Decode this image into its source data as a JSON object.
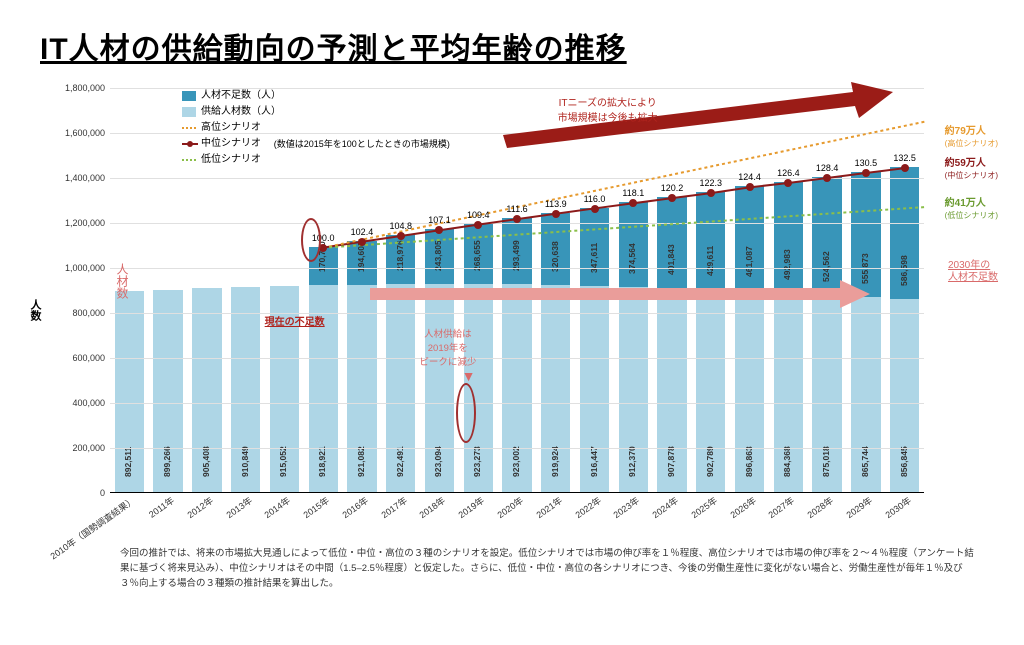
{
  "title": "IT人材の供給動向の予測と平均年齢の推移",
  "chart": {
    "type": "bar+line",
    "y_label": "人数",
    "ylim": [
      0,
      1800000
    ],
    "ytick_step": 200000,
    "background": "#ffffff",
    "grid_color": "#e0e0e0",
    "supply_color": "#aed6e6",
    "shortage_color": "#3895b9",
    "mid_color": "#8b1a1a",
    "high_color": "#e69a2e",
    "low_color": "#8bbf4a",
    "years": [
      "2010年（国勢調査結果）",
      "2011年",
      "2012年",
      "2013年",
      "2014年",
      "2015年",
      "2016年",
      "2017年",
      "2018年",
      "2019年",
      "2020年",
      "2021年",
      "2022年",
      "2023年",
      "2024年",
      "2025年",
      "2026年",
      "2027年",
      "2028年",
      "2029年",
      "2030年"
    ],
    "supply": [
      892511,
      899266,
      905408,
      910849,
      915052,
      918921,
      921082,
      922491,
      923094,
      923273,
      923002,
      919924,
      916447,
      912370,
      907878,
      902789,
      896863,
      884368,
      875018,
      865744,
      856845
    ],
    "shortage": [
      null,
      null,
      null,
      null,
      null,
      170700,
      194608,
      218976,
      243805,
      268655,
      293499,
      320638,
      347611,
      374564,
      401843,
      429611,
      461087,
      492983,
      524562,
      555873,
      586598
    ],
    "mid_values": [
      null,
      null,
      null,
      null,
      null,
      100.0,
      102.4,
      104.8,
      107.1,
      109.4,
      111.6,
      113.9,
      116.0,
      118.1,
      120.2,
      122.3,
      124.4,
      126.4,
      128.4,
      130.5,
      132.5
    ],
    "high_start": 1089000,
    "high_end": 1650000,
    "low_start": 1089000,
    "low_end": 1270000,
    "mid_note": "(数値は2015年を100としたときの市場規模)"
  },
  "legend": {
    "shortage": "人材不足数（人）",
    "supply": "供給人材数（人）",
    "high": "高位シナリオ",
    "mid": "中位シナリオ",
    "low": "低位シナリオ"
  },
  "annotations": {
    "vlabel": "人材数",
    "current": "現在の不足数",
    "peak": "人材供給は\n2019年を\nピークに減少",
    "expand": "ITニーズの拡大により\n市場規模は今後も拡大",
    "a79": "約79万人",
    "a79s": "(高位シナリオ)",
    "a59": "約59万人",
    "a59s": "(中位シナリオ)",
    "a41": "約41万人",
    "a41s": "(低位シナリオ)",
    "y2030": "2030年の\n人材不足数"
  },
  "footnote": "今回の推計では、将来の市場拡大見通しによって低位・中位・高位の３種のシナリオを設定。低位シナリオでは市場の伸び率を１％程度、高位シナリオでは市場の伸び率を２～４％程度（アンケート結果に基づく将来見込み）、中位シナリオはその中間（1.5–2.5％程度）と仮定した。さらに、低位・中位・高位の各シナリオにつき、今後の労働生産性に変化がない場合と、労働生産性が毎年１％及び３％向上する場合の３種類の推計結果を算出した。"
}
